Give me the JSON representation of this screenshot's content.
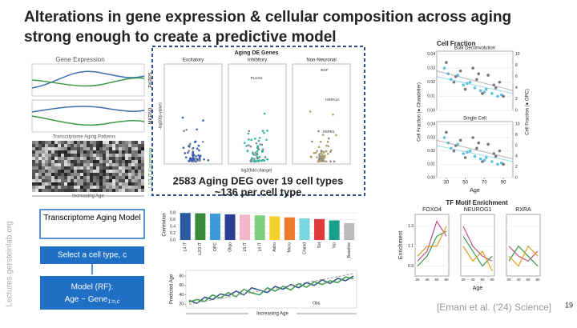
{
  "title": [
    "Alterations in gene expression & cellular composition across aging",
    "strong enough to create a predictive model"
  ],
  "side_label": "Lectures.gersteinlab.org",
  "page_number": "19",
  "citation": "[Emani et al. ('24) Science]",
  "gene_expression": {
    "title": "Gene Expression",
    "patterns_title": "Transcriptome Aging Patterns",
    "genes": [
      "FKBP5",
      "MKRN3"
    ],
    "expression_label": "L2/3 IT Expression",
    "xlabel": "Increasing Age"
  },
  "deg": {
    "title": "Aging DE Genes",
    "groups": [
      "Excitatory",
      "Inhibitory",
      "Non-Neuronal"
    ],
    "ylabel": "-log10(p-value)",
    "xlabel": "log2(fold change)",
    "genes": [
      "PLCG2",
      "EGF",
      "HSPA1A",
      "HSPB1"
    ],
    "caption": [
      "2583 Aging DEG over 19 cell types",
      "~136 per cell type"
    ]
  },
  "flow": {
    "box1": "Transcriptome Aging Model",
    "box2": "Select a cell type, c",
    "box3_line1": "Model (RF):",
    "box3_line2": "Age ~ Gene",
    "box3_sub": "1:n,c"
  },
  "chart_data": [
    {
      "type": "bar",
      "ylabel": "Correlation",
      "categories": [
        "L4 IT",
        "L2/3 IT",
        "OPC",
        "Oligo",
        "L5 IT",
        "L6 IT",
        "Astro",
        "Micro",
        "Chand",
        "Sst",
        "Vip",
        "Baseline"
      ],
      "values": [
        0.8,
        0.79,
        0.78,
        0.76,
        0.75,
        0.73,
        0.7,
        0.67,
        0.64,
        0.62,
        0.58,
        0.5
      ],
      "colors": [
        "#2c5aa0",
        "#3a8a3a",
        "#3b9ad9",
        "#2c3e91",
        "#f2b6c6",
        "#7fcf7f",
        "#f2d12c",
        "#f07a2c",
        "#7ad7e0",
        "#e23b3b",
        "#1a9f8f",
        "#bbbbbb"
      ],
      "ylim": [
        0,
        0.9
      ],
      "yticks": [
        {
          "value": 0,
          "label": "0.0"
        },
        0.2,
        0.4,
        0.6,
        0.8
      ]
    },
    {
      "type": "line",
      "ylabel": "Predicted Age",
      "xlabel": "Increasing Age",
      "series": [
        {
          "color": "#2c4f8a",
          "values": [
            28,
            22,
            35,
            30,
            42,
            38,
            48,
            40,
            55,
            50,
            45,
            58,
            52,
            62,
            55,
            66,
            60,
            72,
            64,
            75,
            70,
            80
          ]
        },
        {
          "color": "#3a9a4a",
          "values": [
            25,
            30,
            26,
            40,
            33,
            45,
            36,
            52,
            44,
            40,
            55,
            48,
            58,
            50,
            64,
            56,
            68,
            62,
            70,
            66,
            78,
            74
          ]
        }
      ],
      "obs": {
        "label": "Obs.",
        "values": [
          20,
          85
        ]
      },
      "ylim": [
        12,
        92
      ],
      "yticks": [
        20,
        40,
        60,
        80
      ]
    },
    {
      "type": "scatter",
      "title": "Cell Fraction",
      "panels": [
        "Bulk Deconvolution",
        "Single Cell"
      ],
      "ylabel": "Cell Fraction (● Chandelier)",
      "y2label": "Cell Fraction (● OPC)",
      "xlabel": "Age",
      "series": [
        {
          "name": "Chandelier",
          "color": "#5bc0de",
          "x": [
            28,
            35,
            42,
            48,
            55,
            60,
            66,
            72,
            78,
            84,
            88,
            32,
            52,
            70
          ],
          "y": [
            0.03,
            0.022,
            0.025,
            0.018,
            0.02,
            0.016,
            0.014,
            0.015,
            0.012,
            0.01,
            0.011,
            0.026,
            0.019,
            0.013
          ]
        },
        {
          "name": "OPC",
          "color": "#777777",
          "x": [
            30,
            38,
            45,
            50,
            58,
            62,
            68,
            74,
            80,
            86,
            90,
            40,
            64,
            82
          ],
          "y": [
            0.034,
            0.02,
            0.028,
            0.015,
            0.03,
            0.022,
            0.012,
            0.025,
            0.018,
            0.02,
            0.01,
            0.024,
            0.026,
            0.016
          ]
        }
      ],
      "xlim": [
        20,
        100
      ],
      "xticks": [
        30,
        50,
        70,
        90
      ],
      "ylim": [
        0,
        0.042
      ],
      "yticks": [
        {
          "value": 0,
          "label": "0.00"
        },
        0.01,
        0.02,
        0.03,
        0.04
      ],
      "y2lim": [
        0,
        10.5
      ],
      "y2ticks": [
        0,
        2,
        4,
        6,
        8,
        10
      ]
    },
    {
      "type": "line",
      "title": "TF Motif Enrichment",
      "panels": [
        "FOXO4",
        "NEUROG1",
        "RXRA"
      ],
      "ylabel": "Enrichment",
      "xlabel": "Age",
      "x": [
        20,
        40,
        60,
        80
      ],
      "series": [
        {
          "color": "#c04d8a",
          "values": [
            [
              0.95,
              1.05,
              1.35,
              1.2
            ],
            [
              1.3,
              1.1,
              1.0,
              0.95
            ],
            [
              1.1,
              1.0,
              0.95,
              1.05
            ]
          ]
        },
        {
          "color": "#3a9a4a",
          "values": [
            [
              0.9,
              1.0,
              1.2,
              1.25
            ],
            [
              1.2,
              1.05,
              0.9,
              1.0
            ],
            [
              0.95,
              1.1,
              1.0,
              0.9
            ]
          ]
        },
        {
          "color": "#e0a020",
          "values": [
            [
              1.0,
              1.1,
              1.1,
              1.3
            ],
            [
              1.1,
              0.95,
              1.05,
              0.85
            ],
            [
              1.0,
              0.9,
              1.1,
              1.0
            ]
          ]
        }
      ],
      "xlim": [
        15,
        85
      ],
      "xticks": [
        20,
        40,
        60,
        80
      ],
      "ylim": [
        0.8,
        1.42
      ],
      "yticks": [
        0.9,
        1.1,
        1.3
      ]
    }
  ]
}
